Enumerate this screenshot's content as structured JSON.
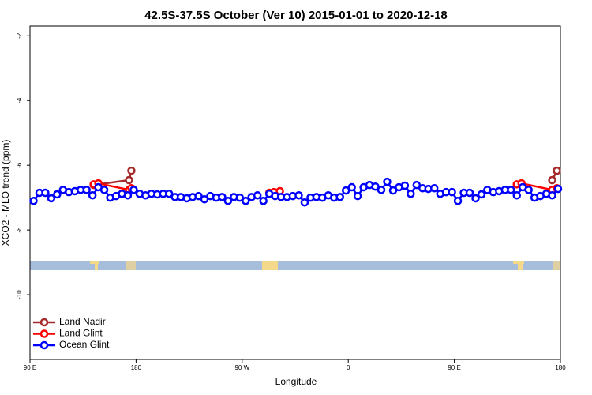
{
  "chart_data": {
    "type": "line",
    "title": "42.5S-37.5S October (Ver 10)   2015-01-01 to 2020-12-18",
    "xlabel": "Longitude",
    "ylabel": "XCO2 - MLO trend (ppm)",
    "xlim": [
      90,
      540
    ],
    "ylim": [
      -12,
      -1.7
    ],
    "xticks": [
      {
        "value": 90,
        "label": "90 E"
      },
      180,
      {
        "value": 270,
        "label": "90 W"
      },
      {
        "value": 360,
        "label": "0"
      },
      {
        "value": 450,
        "label": "90 E"
      },
      {
        "value": 540,
        "label": "180"
      }
    ],
    "yticks": [
      -2,
      -4,
      -6,
      -8,
      -10
    ],
    "legend": "bottom-left",
    "series": [
      {
        "name": "Land Nadir",
        "color": "#a52a2a",
        "x": [
          144,
          174,
          176,
          null,
          533,
          537
        ],
        "values": [
          -6.61,
          -6.46,
          -6.17,
          null,
          -6.46,
          -6.17
        ]
      },
      {
        "name": "Land Glint",
        "color": "#ff0000",
        "x": [
          144,
          148,
          174,
          176,
          null,
          293,
          297,
          302,
          null,
          503,
          507,
          533,
          537
        ],
        "values": [
          -6.59,
          -6.56,
          -6.76,
          -6.71,
          null,
          -6.85,
          -6.83,
          -6.8,
          null,
          -6.59,
          -6.56,
          -6.76,
          -6.71
        ]
      },
      {
        "name": "Ocean Glint",
        "color": "#0000ff",
        "x": [
          93,
          98,
          103,
          108,
          113,
          118,
          123,
          128,
          133,
          138,
          143,
          148,
          153,
          158,
          163,
          168,
          173,
          178,
          183,
          188,
          193,
          198,
          203,
          208,
          213,
          218,
          223,
          228,
          233,
          238,
          243,
          248,
          253,
          258,
          263,
          268,
          273,
          278,
          283,
          288,
          293,
          298,
          303,
          308,
          313,
          318,
          323,
          328,
          333,
          338,
          343,
          348,
          353,
          358,
          363,
          368,
          373,
          378,
          383,
          388,
          393,
          398,
          403,
          408,
          413,
          418,
          423,
          428,
          433,
          438,
          443,
          448,
          453,
          458,
          463,
          468,
          473,
          478,
          483,
          488,
          493,
          498,
          503,
          508,
          513,
          518,
          523,
          528,
          533,
          538
        ],
        "values": [
          -7.1,
          -6.85,
          -6.85,
          -7.02,
          -6.9,
          -6.76,
          -6.83,
          -6.8,
          -6.76,
          -6.76,
          -6.93,
          -6.68,
          -6.76,
          -7.0,
          -6.95,
          -6.88,
          -6.93,
          -6.76,
          -6.88,
          -6.93,
          -6.88,
          -6.9,
          -6.88,
          -6.88,
          -6.98,
          -6.98,
          -7.02,
          -6.98,
          -6.95,
          -7.05,
          -6.95,
          -7.0,
          -6.98,
          -7.1,
          -6.98,
          -7.0,
          -7.1,
          -6.98,
          -6.93,
          -7.1,
          -6.88,
          -6.95,
          -6.98,
          -6.98,
          -6.95,
          -6.93,
          -7.15,
          -7.0,
          -6.98,
          -7.0,
          -6.93,
          -7.0,
          -6.98,
          -6.78,
          -6.68,
          -6.95,
          -6.68,
          -6.61,
          -6.66,
          -6.76,
          -6.51,
          -6.78,
          -6.68,
          -6.63,
          -6.88,
          -6.61,
          -6.71,
          -6.73,
          -6.71,
          -6.88,
          -6.83,
          -6.83,
          -7.1,
          -6.85,
          -6.85,
          -7.02,
          -6.9,
          -6.76,
          -6.83,
          -6.8,
          -6.76,
          -6.76,
          -6.93,
          -6.68,
          -6.76,
          -7.0,
          -6.95,
          -6.88,
          -6.93,
          -6.73
        ]
      }
    ]
  }
}
